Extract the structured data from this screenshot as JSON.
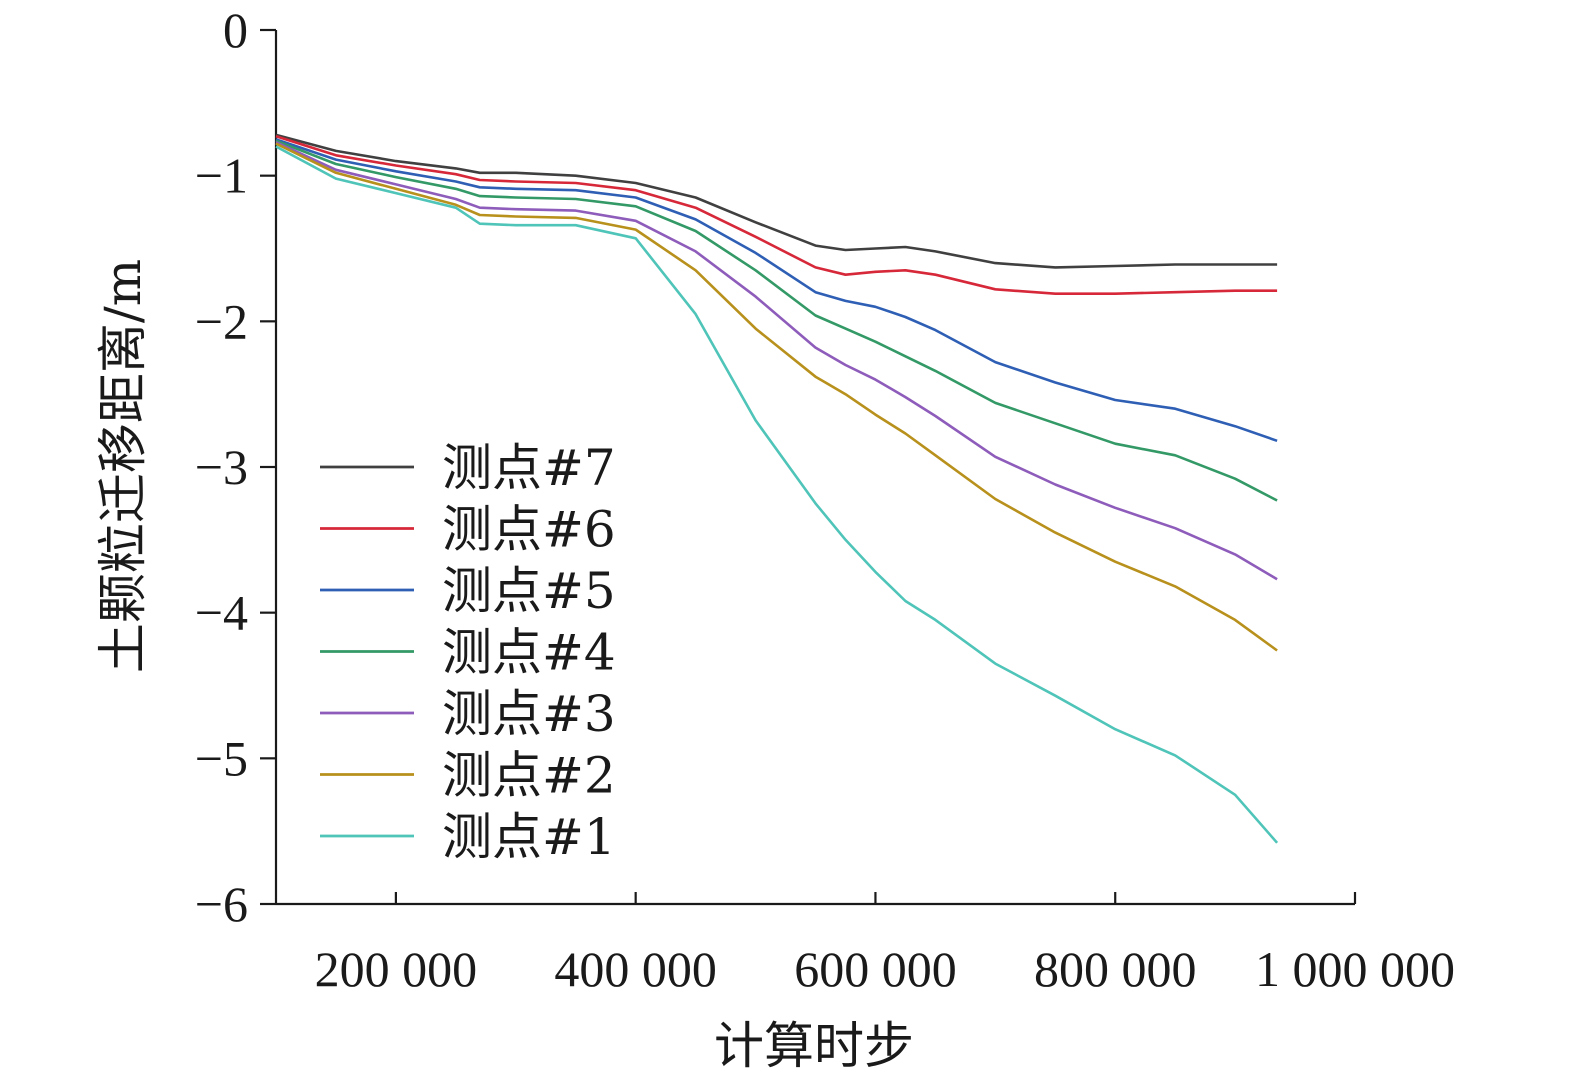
{
  "chart_data": {
    "type": "line",
    "title": "",
    "xlabel": "计算时步",
    "ylabel": "土颗粒迁移距离/m",
    "xlim": [
      100000,
      1000000
    ],
    "ylim": [
      -6,
      0
    ],
    "x_ticks": [
      {
        "value": 200000,
        "label": "200 000"
      },
      {
        "value": 400000,
        "label": "400 000"
      },
      {
        "value": 600000,
        "label": "600 000"
      },
      {
        "value": 800000,
        "label": "800 000"
      },
      {
        "value": 1000000,
        "label": "1 000 000"
      }
    ],
    "y_ticks": [
      {
        "value": 0,
        "label": "0"
      },
      {
        "value": -1,
        "label": "−1"
      },
      {
        "value": -2,
        "label": "−2"
      },
      {
        "value": -3,
        "label": "−3"
      },
      {
        "value": -4,
        "label": "−4"
      },
      {
        "value": -5,
        "label": "−5"
      },
      {
        "value": -6,
        "label": "−6"
      }
    ],
    "grid": false,
    "legend_position": "bottom-left",
    "x": [
      100000,
      150000,
      200000,
      250000,
      270000,
      300000,
      350000,
      400000,
      450000,
      500000,
      550000,
      575000,
      600000,
      625000,
      650000,
      700000,
      750000,
      800000,
      850000,
      900000,
      935000
    ],
    "series": [
      {
        "name": "测点#7",
        "color": "#404040",
        "values": [
          -0.72,
          -0.83,
          -0.9,
          -0.95,
          -0.98,
          -0.98,
          -1.0,
          -1.05,
          -1.15,
          -1.32,
          -1.48,
          -1.51,
          -1.5,
          -1.49,
          -1.52,
          -1.6,
          -1.63,
          -1.62,
          -1.61,
          -1.61,
          -1.61
        ]
      },
      {
        "name": "测点#6",
        "color": "#d62839",
        "values": [
          -0.73,
          -0.86,
          -0.93,
          -0.99,
          -1.03,
          -1.04,
          -1.05,
          -1.1,
          -1.22,
          -1.42,
          -1.63,
          -1.68,
          -1.66,
          -1.65,
          -1.68,
          -1.78,
          -1.81,
          -1.81,
          -1.8,
          -1.79,
          -1.79
        ]
      },
      {
        "name": "测点#5",
        "color": "#2e5fb5",
        "values": [
          -0.75,
          -0.89,
          -0.97,
          -1.04,
          -1.08,
          -1.09,
          -1.1,
          -1.15,
          -1.3,
          -1.53,
          -1.8,
          -1.86,
          -1.9,
          -1.97,
          -2.06,
          -2.28,
          -2.42,
          -2.54,
          -2.6,
          -2.72,
          -2.82
        ]
      },
      {
        "name": "测点#4",
        "color": "#339966",
        "values": [
          -0.76,
          -0.92,
          -1.01,
          -1.09,
          -1.14,
          -1.15,
          -1.16,
          -1.21,
          -1.38,
          -1.65,
          -1.96,
          -2.05,
          -2.14,
          -2.24,
          -2.34,
          -2.56,
          -2.7,
          -2.84,
          -2.92,
          -3.08,
          -3.23
        ]
      },
      {
        "name": "测点#3",
        "color": "#8e5cba",
        "values": [
          -0.77,
          -0.96,
          -1.06,
          -1.16,
          -1.22,
          -1.23,
          -1.24,
          -1.31,
          -1.52,
          -1.83,
          -2.18,
          -2.3,
          -2.4,
          -2.52,
          -2.65,
          -2.93,
          -3.12,
          -3.28,
          -3.42,
          -3.6,
          -3.77
        ]
      },
      {
        "name": "测点#2",
        "color": "#b8901c",
        "values": [
          -0.78,
          -0.98,
          -1.09,
          -1.2,
          -1.27,
          -1.28,
          -1.29,
          -1.37,
          -1.65,
          -2.05,
          -2.38,
          -2.5,
          -2.64,
          -2.77,
          -2.92,
          -3.22,
          -3.45,
          -3.65,
          -3.82,
          -4.05,
          -4.26
        ]
      },
      {
        "name": "测点#1",
        "color": "#4fc4b8",
        "values": [
          -0.8,
          -1.02,
          -1.12,
          -1.22,
          -1.33,
          -1.34,
          -1.34,
          -1.43,
          -1.95,
          -2.68,
          -3.25,
          -3.5,
          -3.72,
          -3.92,
          -4.05,
          -4.35,
          -4.57,
          -4.8,
          -4.98,
          -5.25,
          -5.58
        ]
      }
    ]
  }
}
